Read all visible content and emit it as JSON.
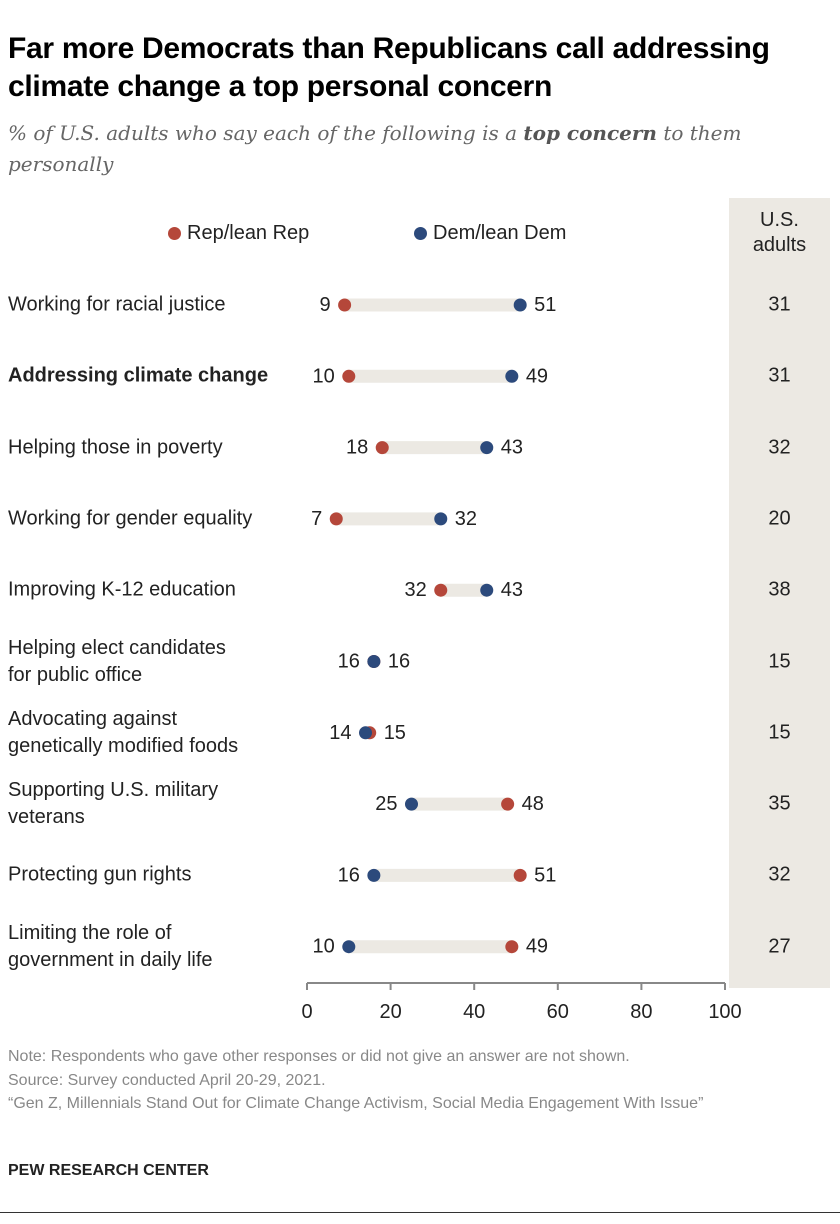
{
  "title": "Far more Democrats than Republicans call addressing climate change a top personal concern",
  "subtitle_pre": "% of U.S. adults who say each of the following is a ",
  "subtitle_bold": "top concern",
  "subtitle_post": " to them personally",
  "column_header": [
    "U.S.",
    "adults"
  ],
  "colors": {
    "rep": "#b5473a",
    "dem": "#2c4a7c",
    "bar": "#ece9e3",
    "axis": "#888888",
    "column_bg": "#ece9e3"
  },
  "chart_data": {
    "type": "dot",
    "xlim": [
      0,
      100
    ],
    "xticks": [
      0,
      20,
      40,
      60,
      80,
      100
    ],
    "legend": [
      "Rep/lean Rep",
      "Dem/lean Dem"
    ],
    "legend_placement": "top",
    "categories": [
      [
        "Working for racial justice"
      ],
      [
        "Addressing climate change"
      ],
      [
        "Helping those in poverty"
      ],
      [
        "Working for gender equality"
      ],
      [
        "Improving K-12 education"
      ],
      [
        "Helping elect candidates",
        "for public office"
      ],
      [
        "Advocating against",
        "genetically modified foods"
      ],
      [
        "Supporting U.S. military",
        "veterans"
      ],
      [
        "Protecting gun rights"
      ],
      [
        "Limiting the role of",
        "government in daily life"
      ]
    ],
    "highlight_index": 1,
    "series": [
      {
        "name": "Rep/lean Rep",
        "values": [
          9,
          10,
          18,
          7,
          32,
          16,
          15,
          48,
          51,
          49
        ]
      },
      {
        "name": "Dem/lean Dem",
        "values": [
          51,
          49,
          43,
          32,
          43,
          16,
          14,
          25,
          16,
          10
        ]
      }
    ],
    "us_adults": [
      31,
      31,
      32,
      20,
      38,
      15,
      15,
      35,
      32,
      27
    ]
  },
  "notes": [
    "Note: Respondents who gave other responses or did not give an answer are not shown.",
    "Source: Survey conducted April 20-29, 2021.",
    "“Gen Z, Millennials Stand Out for Climate Change Activism, Social Media Engagement With Issue”"
  ],
  "brand": "PEW RESEARCH CENTER"
}
